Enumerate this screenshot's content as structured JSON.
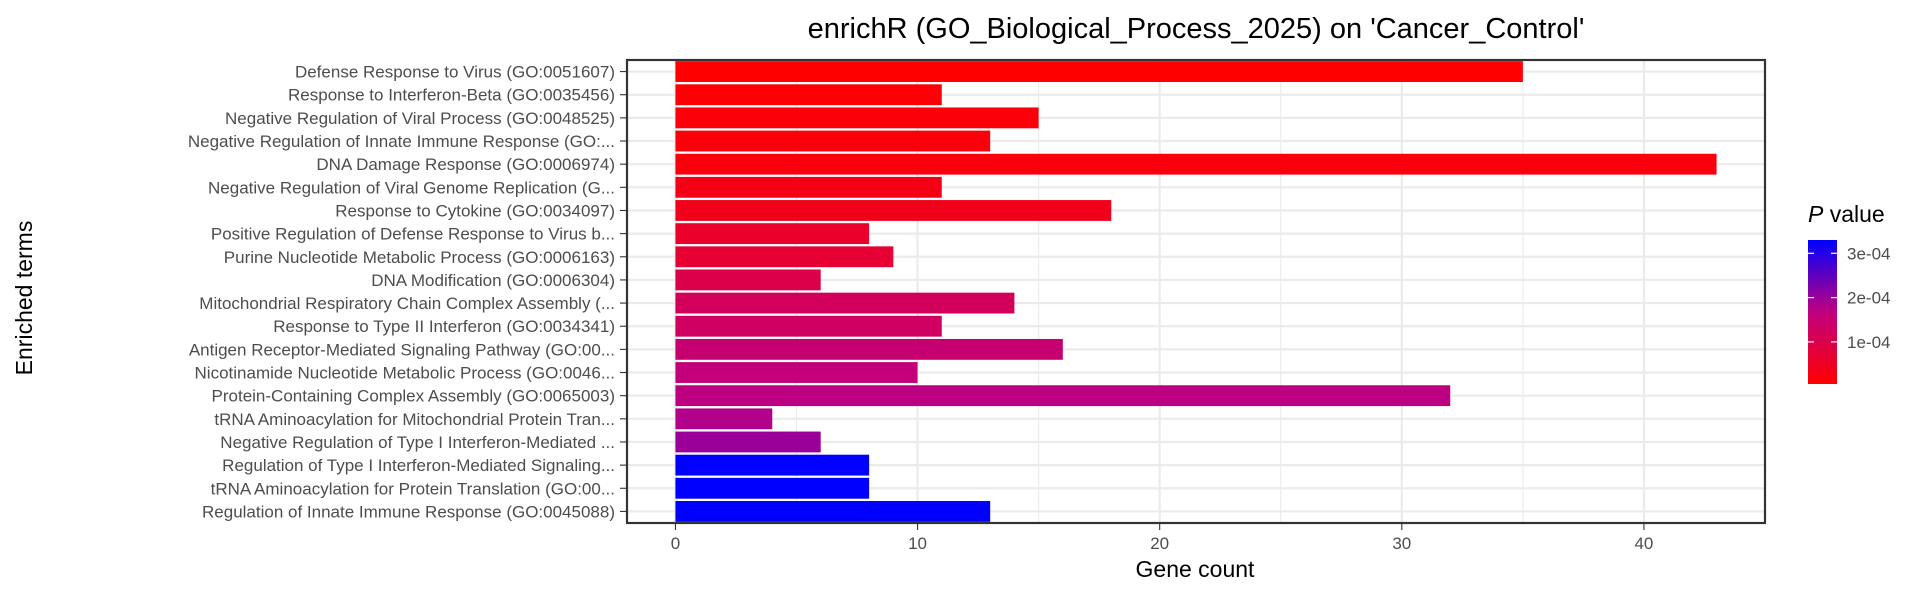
{
  "chart_data": {
    "type": "bar",
    "orientation": "horizontal",
    "title": "enrichR (GO_Biological_Process_2025) on 'Cancer_Control'",
    "xlabel": "Gene count",
    "ylabel": "Enriched terms",
    "xlim": [
      -2,
      45
    ],
    "x_ticks": [
      0,
      10,
      20,
      30,
      40
    ],
    "grid": true,
    "categories": [
      "Defense Response to Virus (GO:0051607)",
      "Response to Interferon-Beta (GO:0035456)",
      "Negative Regulation of Viral Process (GO:0048525)",
      "Negative Regulation of Innate Immune Response (GO:...",
      "DNA Damage Response (GO:0006974)",
      "Negative Regulation of Viral Genome Replication (G...",
      "Response to Cytokine (GO:0034097)",
      "Positive Regulation of Defense Response to Virus b...",
      "Purine Nucleotide Metabolic Process (GO:0006163)",
      "DNA Modification (GO:0006304)",
      "Mitochondrial Respiratory Chain Complex Assembly (...",
      "Response to Type II Interferon (GO:0034341)",
      "Antigen Receptor-Mediated Signaling Pathway (GO:00...",
      "Nicotinamide Nucleotide Metabolic Process (GO:0046...",
      "Protein-Containing Complex Assembly (GO:0065003)",
      "tRNA Aminoacylation for Mitochondrial Protein Tran...",
      "Negative Regulation of Type I Interferon-Mediated ...",
      "Regulation of Type I Interferon-Mediated Signaling...",
      "tRNA Aminoacylation for Protein Translation (GO:00...",
      "Regulation of Innate Immune Response (GO:0045088)"
    ],
    "values": [
      35,
      11,
      15,
      13,
      43,
      11,
      18,
      8,
      9,
      6,
      14,
      11,
      16,
      10,
      32,
      4,
      6,
      8,
      8,
      13
    ],
    "p_values": [
      5e-06,
      1.2e-05,
      1.5e-05,
      1.8e-05,
      2e-05,
      3.5e-05,
      4e-05,
      6e-05,
      7e-05,
      0.0001,
      0.00012,
      0.00013,
      0.00015,
      0.00016,
      0.00017,
      0.00018,
      0.0002,
      0.00033,
      0.00033,
      0.00033
    ],
    "legend": {
      "title_italic": "P",
      "title_rest": " value",
      "placement": "right",
      "ticks": [
        0.0001,
        0.0002,
        0.0003
      ],
      "tick_labels": [
        "1e-04",
        "2e-04",
        "3e-04"
      ],
      "range": [
        5e-06,
        0.00033
      ],
      "color_low": "#ff0000",
      "color_high": "#0000ff"
    }
  }
}
